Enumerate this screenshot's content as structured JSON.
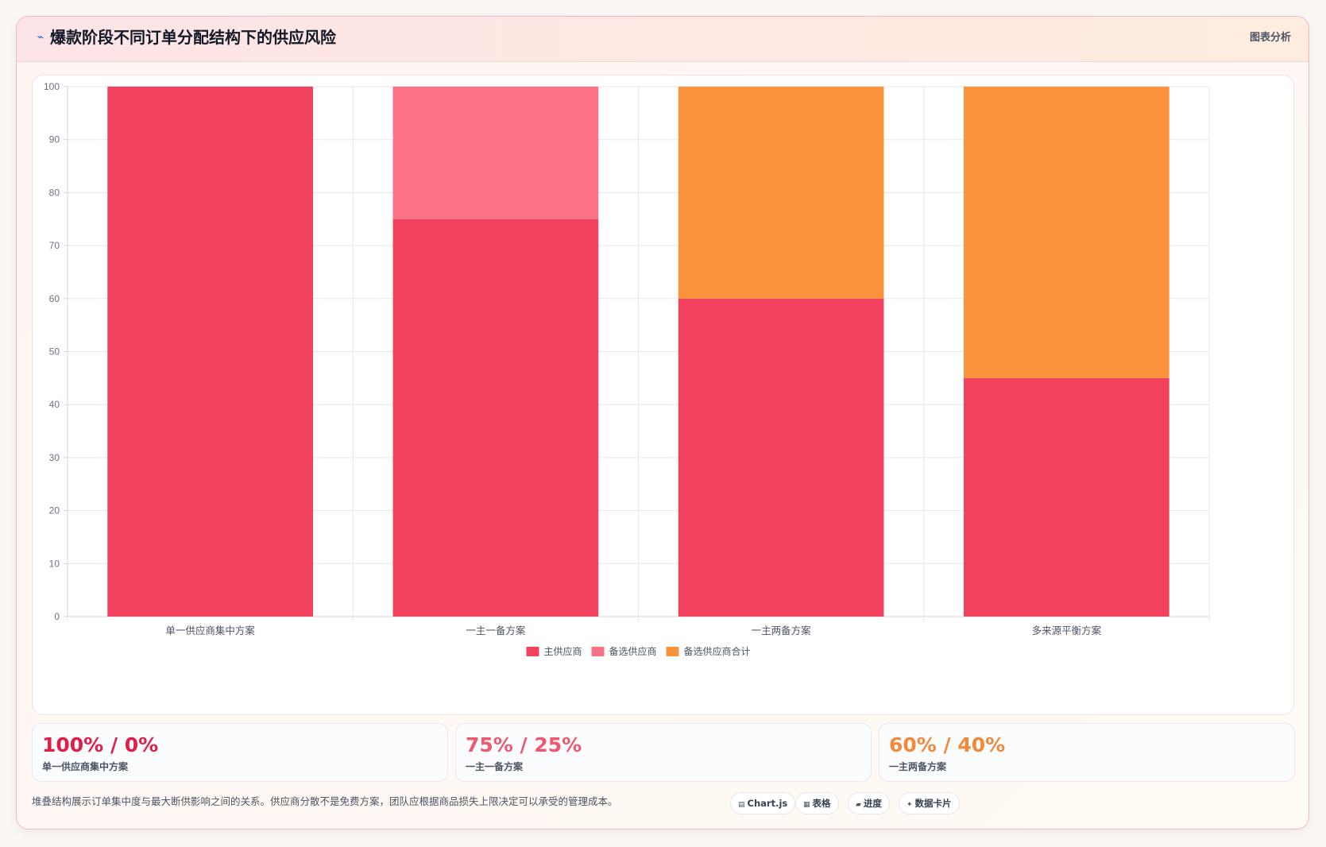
{
  "header": {
    "icon": "trend-line-icon",
    "title": "爆款阶段不同订单分配结构下的供应风险",
    "link_label": "图表分析"
  },
  "chart_data": {
    "type": "bar",
    "stacked": true,
    "categories": [
      "单一供应商集中方案",
      "一主一备方案",
      "一主两备方案",
      "多来源平衡方案"
    ],
    "series": [
      {
        "name": "主供应商",
        "color": "#f2405f",
        "values": [
          100,
          75,
          60,
          45
        ]
      },
      {
        "name": "备选供应商",
        "color": "#fb7185",
        "values": [
          0,
          25,
          0,
          0
        ]
      },
      {
        "name": "备选供应商合计",
        "color": "#fb923c",
        "values": [
          0,
          0,
          40,
          55
        ]
      }
    ],
    "ylim": [
      0,
      100
    ],
    "yticks": [
      0,
      10,
      20,
      30,
      40,
      50,
      60,
      70,
      80,
      90,
      100
    ],
    "grid": true,
    "legend": "bottom"
  },
  "stats": [
    {
      "value": "100% / 0%",
      "label": "单一供应商集中方案",
      "color": "#e11d48"
    },
    {
      "value": "75% / 25%",
      "label": "一主一备方案",
      "color": "#f0586f"
    },
    {
      "value": "60% / 40%",
      "label": "一主两备方案",
      "color": "#f0893a"
    }
  ],
  "footer": {
    "text": "堆叠结构展示订单集中度与最大断供影响之间的关系。供应商分散不是免费方案，团队应根据商品损失上限决定可以承受的管理成本。",
    "pills": [
      {
        "icon": "chart-icon",
        "glyph": "▤",
        "label": "Chart.js"
      },
      {
        "icon": "table-icon",
        "glyph": "▦",
        "label": "表格"
      },
      {
        "icon": "progress-icon",
        "glyph": "▰",
        "label": "进度"
      },
      {
        "icon": "sparkle-icon",
        "glyph": "✦",
        "label": "数据卡片"
      }
    ]
  }
}
